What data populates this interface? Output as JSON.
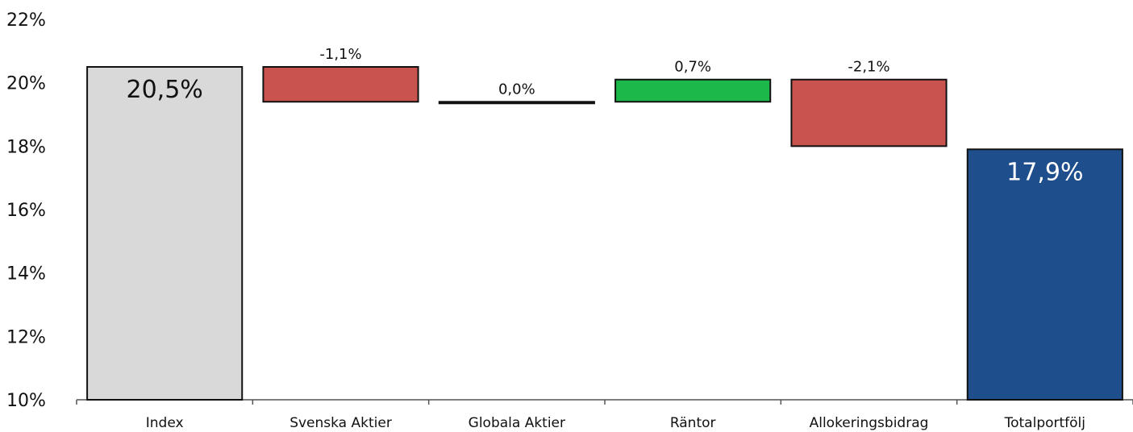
{
  "chart_data": {
    "type": "bar",
    "subtype": "waterfall",
    "categories": [
      "Index",
      "Svenska Aktier",
      "Globala Aktier",
      "Räntor",
      "Allokeringsbidrag",
      "Totalportfölj"
    ],
    "values": [
      20.5,
      -1.1,
      0.0,
      0.7,
      -2.1,
      17.9
    ],
    "bar_kinds": [
      "total",
      "delta",
      "delta",
      "delta",
      "delta",
      "total"
    ],
    "value_labels": [
      "20,5%",
      "-1,1%",
      "0,0%",
      "0,7%",
      "-2,1%",
      "17,9%"
    ],
    "y_ticks": [
      "10%",
      "12%",
      "14%",
      "16%",
      "18%",
      "20%",
      "22%"
    ],
    "y_tick_values": [
      10,
      12,
      14,
      16,
      18,
      20,
      22
    ],
    "ylim": [
      10,
      22
    ],
    "grid": false,
    "title": "",
    "xlabel": "",
    "ylabel": "",
    "colors": {
      "index": "#d9d9d9",
      "negative": "#c8534f",
      "positive": "#1cb84a",
      "neutral": "#1a1a1a",
      "total": "#1f4e8c",
      "outline": "#111111",
      "index_label": "#111111",
      "total_label": "#ffffff"
    }
  }
}
